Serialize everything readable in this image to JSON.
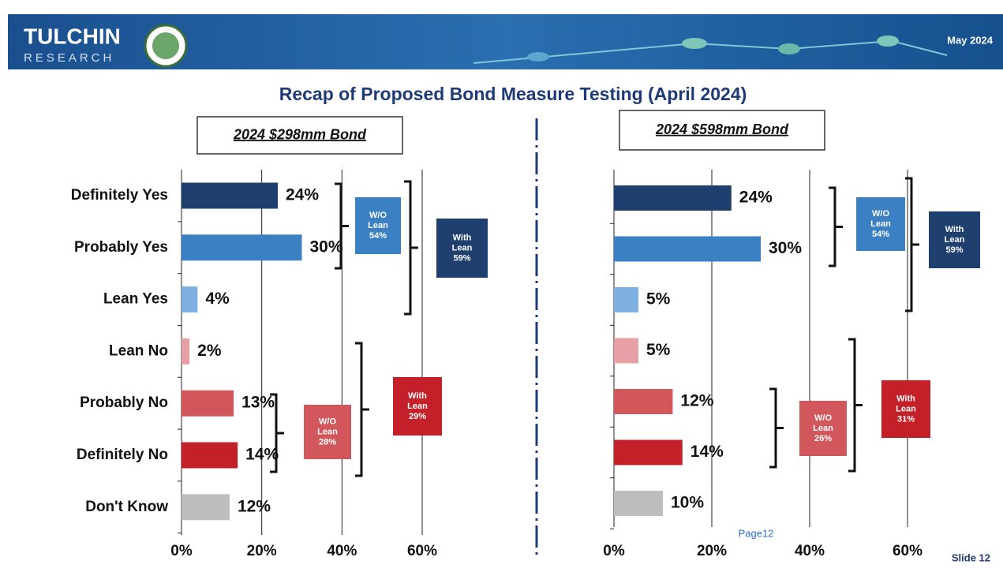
{
  "header": {
    "logo": "TULCHIN",
    "logo_sub": "RESEARCH",
    "date": "May 2024"
  },
  "title": "Recap of Proposed Bond Measure Testing (April 2024)",
  "page": "Page12",
  "slide": "Slide 12",
  "chart_data": [
    {
      "type": "bar",
      "orientation": "horizontal",
      "subtitle": "2024 $298mm Bond",
      "categories": [
        "Definitely Yes",
        "Probably Yes",
        "Lean Yes",
        "Lean No",
        "Probably No",
        "Definitely No",
        "Don't Know"
      ],
      "values": [
        24,
        30,
        4,
        2,
        13,
        14,
        12
      ],
      "value_labels": [
        "24%",
        "30%",
        "4%",
        "2%",
        "13%",
        "14%",
        "12%"
      ],
      "colors": [
        "#1f3f6e",
        "#3a80c3",
        "#7eb1e2",
        "#e7a0a5",
        "#d1575d",
        "#c42029",
        "#bdbdbd"
      ],
      "xlim": [
        0,
        60
      ],
      "xticks": [
        {
          "value": 0,
          "label": "0%"
        },
        {
          "value": 20,
          "label": "20%"
        },
        {
          "value": 40,
          "label": "40%"
        },
        {
          "value": 60,
          "label": "60%"
        }
      ],
      "grid": true,
      "annotations": [
        {
          "lines": [
            "W/O",
            "Lean",
            "54%"
          ],
          "color": "#3a80c3"
        },
        {
          "lines": [
            "With",
            "Lean",
            "59%"
          ],
          "color": "#1f3f6e"
        },
        {
          "lines": [
            "W/O",
            "Lean",
            "28%"
          ],
          "color": "#d1575d"
        },
        {
          "lines": [
            "With",
            "Lean",
            "29%"
          ],
          "color": "#c42029"
        }
      ]
    },
    {
      "type": "bar",
      "orientation": "horizontal",
      "subtitle": "2024 $598mm Bond",
      "values": [
        24,
        30,
        5,
        5,
        12,
        14,
        10
      ],
      "value_labels": [
        "24%",
        "30%",
        "5%",
        "5%",
        "12%",
        "14%",
        "10%"
      ],
      "colors": [
        "#1f3f6e",
        "#3a80c3",
        "#7eb1e2",
        "#e7a0a5",
        "#d1575d",
        "#c42029",
        "#bdbdbd"
      ],
      "xlim": [
        0,
        60
      ],
      "xticks": [
        {
          "value": 0,
          "label": "0%"
        },
        {
          "value": 20,
          "label": "20%"
        },
        {
          "value": 40,
          "label": "40%"
        },
        {
          "value": 60,
          "label": "60%"
        }
      ],
      "grid": true,
      "annotations": [
        {
          "lines": [
            "W/O",
            "Lean",
            "54%"
          ],
          "color": "#3a80c3"
        },
        {
          "lines": [
            "With",
            "Lean",
            "59%"
          ],
          "color": "#1f3f6e"
        },
        {
          "lines": [
            "W/O",
            "Lean",
            "26%"
          ],
          "color": "#d1575d"
        },
        {
          "lines": [
            "With",
            "Lean",
            "31%"
          ],
          "color": "#c42029"
        }
      ]
    }
  ]
}
